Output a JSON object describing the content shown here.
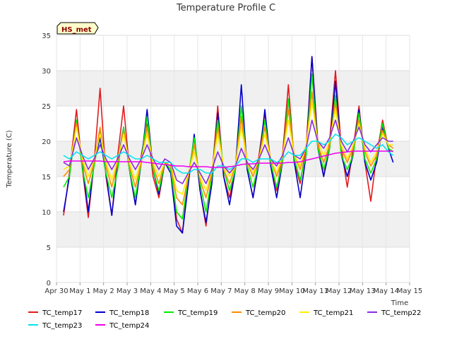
{
  "chart_data": {
    "type": "line",
    "title": "Temperature Profile C",
    "xlabel": "Time",
    "ylabel": "Temperature (C)",
    "ylim": [
      0,
      35
    ],
    "yticks": [
      0,
      5,
      10,
      15,
      20,
      25,
      30,
      35
    ],
    "xlim": [
      0,
      15
    ],
    "xticks": [
      0,
      1,
      2,
      3,
      4,
      5,
      6,
      7,
      8,
      9,
      10,
      11,
      12,
      13,
      14,
      15
    ],
    "xtick_labels": [
      "Apr 30",
      "May 1",
      "May 2",
      "May 3",
      "May 4",
      "May 5",
      "May 6",
      "May 7",
      "May 8",
      "May 9",
      "May 10",
      "May 11",
      "May 12",
      "May 13",
      "May 14",
      "May 15"
    ],
    "grid": "horizontal bands",
    "badge": "HS_met",
    "x": [
      0.3,
      0.55,
      0.85,
      1.1,
      1.35,
      1.6,
      1.85,
      2.1,
      2.35,
      2.6,
      2.85,
      3.1,
      3.35,
      3.6,
      3.85,
      4.1,
      4.35,
      4.6,
      4.85,
      5.1,
      5.35,
      5.6,
      5.85,
      6.1,
      6.35,
      6.6,
      6.85,
      7.1,
      7.35,
      7.6,
      7.85,
      8.1,
      8.35,
      8.6,
      8.85,
      9.1,
      9.35,
      9.6,
      9.85,
      10.1,
      10.35,
      10.6,
      10.85,
      11.1,
      11.35,
      11.6,
      11.85,
      12.1,
      12.35,
      12.6,
      12.85,
      13.1,
      13.35,
      13.6,
      13.85,
      14.1,
      14.3
    ],
    "series": [
      {
        "name": "TC_temp17",
        "color": "#e31a1c",
        "values": [
          9.5,
          15.5,
          24.5,
          16,
          9.2,
          17,
          27.5,
          15,
          9.5,
          18,
          25,
          16,
          11,
          18,
          22.5,
          15,
          12,
          17,
          16.5,
          9,
          7,
          15,
          20.5,
          13,
          8,
          15,
          25,
          15,
          12,
          16,
          23.5,
          16,
          12,
          18,
          24,
          17,
          13,
          18,
          28,
          17,
          14,
          19,
          32,
          20,
          15,
          20,
          30,
          19,
          13.5,
          19,
          25,
          17,
          11.5,
          18,
          23,
          19,
          18.5
        ]
      },
      {
        "name": "TC_temp18",
        "color": "#0000cd",
        "values": [
          10,
          15,
          23,
          16.5,
          10,
          17,
          20.5,
          15.5,
          9.5,
          17,
          22,
          16,
          11,
          17,
          24.5,
          16,
          12.5,
          17,
          15.5,
          8,
          7,
          14,
          21,
          13,
          8.5,
          14,
          24,
          15,
          11,
          16,
          28,
          16,
          12,
          17,
          24.5,
          16.5,
          12,
          17,
          26,
          17,
          12,
          18,
          32,
          19,
          15,
          19,
          28.5,
          18,
          15,
          18,
          24.5,
          17,
          14.5,
          17,
          22,
          19,
          17
        ]
      },
      {
        "name": "TC_temp19",
        "color": "#00ee00",
        "values": [
          13.5,
          15,
          23,
          16,
          12,
          16.5,
          21.5,
          15.5,
          12,
          16,
          22,
          16,
          12,
          17,
          23.5,
          16,
          13,
          17,
          16,
          10,
          9,
          15,
          20.5,
          14,
          10,
          15,
          23,
          16,
          13,
          16,
          25,
          16.5,
          13.5,
          17,
          23,
          17,
          13.5,
          17,
          26,
          17.5,
          14.5,
          18,
          29.5,
          19,
          16,
          19,
          26.5,
          18,
          16,
          18,
          24,
          17.5,
          15.5,
          17.5,
          22.5,
          19,
          18.5
        ]
      },
      {
        "name": "TC_temp20",
        "color": "#ff8c00",
        "values": [
          15,
          16,
          22.5,
          17,
          14,
          17,
          22,
          16.5,
          13.5,
          17,
          21.5,
          16.5,
          13.5,
          17,
          22,
          16.5,
          14,
          17,
          16.5,
          12,
          11,
          15,
          19.5,
          14.5,
          12,
          15.5,
          22,
          16,
          14,
          16.5,
          23.5,
          17,
          15,
          17.5,
          22,
          17.5,
          15,
          17.5,
          24.5,
          18,
          16,
          19,
          27,
          19.5,
          17,
          19.5,
          25.5,
          19,
          17,
          19,
          23,
          18.5,
          16.5,
          18,
          21.5,
          19.5,
          19
        ]
      },
      {
        "name": "TC_temp21",
        "color": "#ffee00",
        "values": [
          16,
          16.5,
          22,
          17.5,
          15,
          17.5,
          21,
          17,
          14.5,
          17.5,
          21,
          17,
          14.5,
          17.5,
          21,
          17,
          15,
          17,
          17,
          13,
          12.5,
          15.5,
          18.5,
          15,
          13,
          16,
          21,
          16.5,
          15,
          16.5,
          22,
          17,
          15.5,
          17.5,
          21,
          17.5,
          15.5,
          18,
          23,
          18,
          16.5,
          19.5,
          25.5,
          20,
          18,
          20,
          24.5,
          19.5,
          17.5,
          19.5,
          22.5,
          19,
          17,
          18.5,
          21,
          19.5,
          19.5
        ]
      },
      {
        "name": "TC_temp22",
        "color": "#8a2be2",
        "values": [
          17,
          16.5,
          20.5,
          18,
          16,
          17.5,
          19.5,
          17.5,
          16,
          17.5,
          19.5,
          17.5,
          16,
          17.5,
          19.5,
          17.5,
          16,
          17.5,
          17,
          14.5,
          14,
          15.5,
          17,
          15.5,
          14,
          16,
          18.5,
          16.5,
          15.5,
          16.5,
          19,
          17,
          16,
          17.5,
          19.5,
          17.5,
          16.5,
          18,
          20.5,
          18,
          17.5,
          19,
          23,
          20,
          19,
          20.5,
          23,
          20,
          18.5,
          20,
          22,
          19.5,
          18.5,
          19.5,
          20.5,
          20,
          20
        ]
      },
      {
        "name": "TC_temp23",
        "color": "#00e5ee",
        "values": [
          18,
          17.5,
          18.5,
          18,
          17.5,
          18,
          18.5,
          18,
          17.5,
          18,
          18.5,
          18,
          17.5,
          17.5,
          18,
          17.5,
          17,
          17,
          17,
          16,
          15.5,
          15.5,
          16,
          16,
          15.5,
          15.5,
          16.5,
          16.5,
          16,
          16.5,
          17.5,
          17.5,
          17,
          17.5,
          17.5,
          17.5,
          17,
          17.5,
          18.5,
          18,
          18,
          19,
          20,
          20,
          19.5,
          20,
          21,
          20.5,
          19.5,
          20,
          20.5,
          20,
          19.5,
          19,
          19.5,
          18.5,
          18
        ]
      },
      {
        "name": "TC_temp24",
        "color": "#ee00ee",
        "values": [
          17.1,
          17.2,
          17.2,
          17.2,
          17.2,
          17.2,
          17.2,
          17.1,
          17.1,
          17.1,
          17.1,
          17.1,
          17.1,
          17.1,
          17.0,
          16.9,
          16.8,
          16.7,
          16.6,
          16.5,
          16.5,
          16.4,
          16.4,
          16.4,
          16.4,
          16.3,
          16.3,
          16.3,
          16.4,
          16.5,
          16.7,
          16.8,
          16.8,
          16.9,
          16.9,
          16.9,
          16.9,
          16.9,
          17.0,
          17.0,
          17.1,
          17.3,
          17.5,
          17.7,
          17.9,
          18.1,
          18.3,
          18.4,
          18.5,
          18.6,
          18.6,
          18.6,
          18.6,
          18.6,
          18.6,
          18.6,
          18.6
        ]
      }
    ]
  }
}
